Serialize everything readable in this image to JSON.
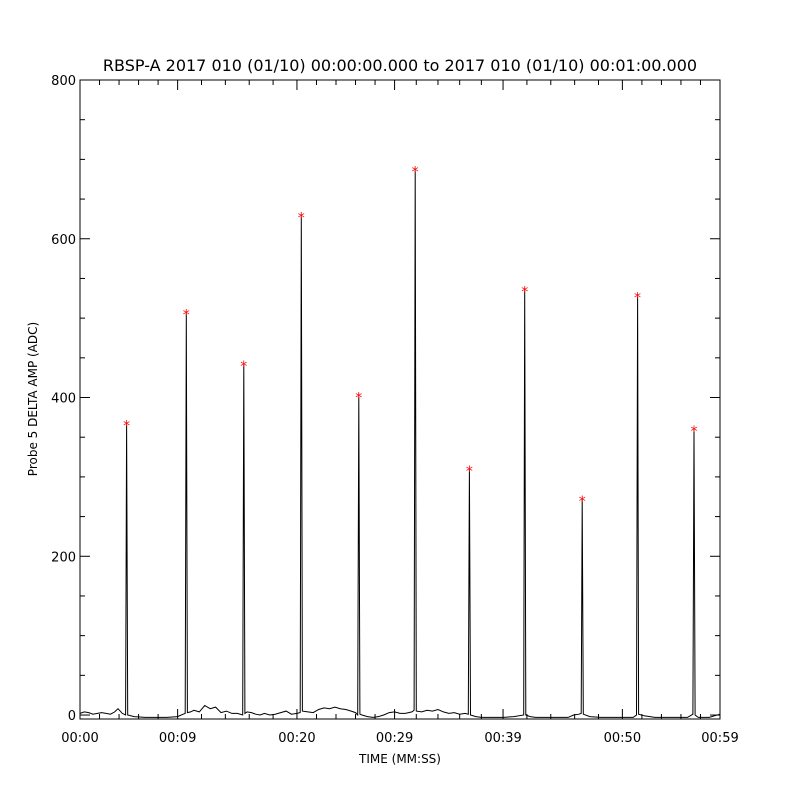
{
  "chart_data": {
    "type": "line",
    "title": "RBSP-A 2017 010 (01/10) 00:00:00.000 to 2017 010 (01/10) 00:01:00.000",
    "xlabel": "TIME (MM:SS)",
    "ylabel": "Probe 5 DELTA AMP (ADC)",
    "xlim": [
      0,
      59
    ],
    "ylim": [
      -5,
      800
    ],
    "x_tick_values": [
      0,
      9,
      20,
      29,
      39,
      50,
      59
    ],
    "x_tick_labels": [
      "00:00",
      "00:09",
      "00:20",
      "00:29",
      "00:39",
      "00:50",
      "00:59"
    ],
    "y_tick_values": [
      0,
      200,
      400,
      600,
      800
    ],
    "y_tick_labels": [
      "0",
      "200",
      "400",
      "600",
      "800"
    ],
    "grid": false,
    "legend": "none",
    "colors": {
      "line": "#000000",
      "peak_marker": "#ff0000",
      "axes": "#000000"
    },
    "series": [
      {
        "x": [
          0,
          0.4,
          0.8,
          1.2,
          1.6,
          2.0,
          2.4,
          2.8,
          3.2,
          3.5,
          3.9,
          4.2,
          4.3,
          4.4,
          5.0,
          6.0,
          7.0,
          8.0,
          9.0,
          9.5,
          9.7,
          9.8,
          9.9,
          10.2,
          10.5,
          11.0,
          11.5,
          12.0,
          12.5,
          13.0,
          13.5,
          14.0,
          14.5,
          15.0,
          15.1,
          15.2,
          15.4,
          15.8,
          16.2,
          16.6,
          17.0,
          17.5,
          18.0,
          18.5,
          19.0,
          19.5,
          20.0,
          20.3,
          20.4,
          20.5,
          21.0,
          21.5,
          22.0,
          22.5,
          23.0,
          23.5,
          24.0,
          24.5,
          25.0,
          25.4,
          25.6,
          25.7,
          25.8,
          26.0,
          26.5,
          27.0,
          27.5,
          28.0,
          28.5,
          29.0,
          29.5,
          30.0,
          30.6,
          30.8,
          30.9,
          31.0,
          31.5,
          32.0,
          32.5,
          33.0,
          33.5,
          34.0,
          34.5,
          35.0,
          35.5,
          35.8,
          35.9,
          36.0,
          36.5,
          37.0,
          38.0,
          39.0,
          40.0,
          40.9,
          41.0,
          41.1,
          41.5,
          42.0,
          43.0,
          44.0,
          45.0,
          45.5,
          46.0,
          46.2,
          46.3,
          46.4,
          47.0,
          48.0,
          49.0,
          50.0,
          51.0,
          51.3,
          51.4,
          51.5,
          52.0,
          53.0,
          54.0,
          55.0,
          56.0,
          56.5,
          56.6,
          56.7,
          57.0,
          58.0,
          59.0
        ],
        "y": [
          2,
          4,
          3,
          1,
          2,
          3,
          2,
          1,
          4,
          8,
          2,
          0,
          366,
          0,
          -2,
          -3,
          -3,
          -3,
          -2,
          1,
          2,
          506,
          3,
          4,
          6,
          4,
          12,
          8,
          10,
          3,
          5,
          2,
          2,
          0,
          441,
          2,
          4,
          3,
          1,
          0,
          2,
          0,
          1,
          3,
          5,
          1,
          2,
          3,
          628,
          5,
          4,
          3,
          7,
          9,
          8,
          10,
          8,
          7,
          5,
          3,
          0,
          401,
          1,
          0,
          -2,
          -3,
          -2,
          0,
          3,
          4,
          2,
          2,
          4,
          6,
          686,
          5,
          4,
          6,
          5,
          7,
          4,
          2,
          3,
          1,
          2,
          1,
          309,
          0,
          -2,
          -3,
          -3,
          -3,
          -2,
          0,
          535,
          0,
          -2,
          -3,
          -3,
          -3,
          -3,
          0,
          1,
          2,
          271,
          1,
          -2,
          -3,
          -3,
          -3,
          -3,
          0,
          527,
          1,
          -1,
          -3,
          -3,
          -3,
          -3,
          1,
          359,
          0,
          -3,
          -3,
          1
        ]
      }
    ],
    "peaks": {
      "x": [
        4.3,
        9.8,
        15.1,
        20.4,
        25.7,
        30.9,
        35.9,
        41.0,
        46.3,
        51.4,
        56.6
      ],
      "y": [
        366,
        506,
        441,
        628,
        401,
        686,
        309,
        535,
        271,
        527,
        359
      ]
    }
  }
}
